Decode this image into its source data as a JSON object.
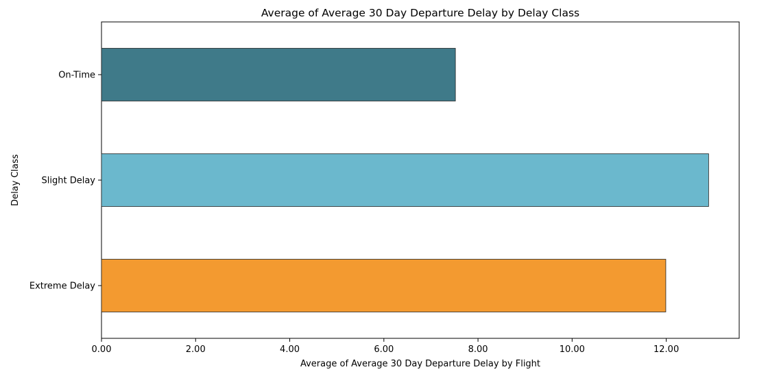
{
  "chart_data": {
    "type": "bar",
    "orientation": "horizontal",
    "title": "Average of Average 30 Day Departure Delay by Delay Class",
    "xlabel": "Average of Average 30 Day Departure Delay by Flight",
    "ylabel": "Delay Class",
    "categories": [
      "On-Time",
      "Slight Delay",
      "Extreme Delay"
    ],
    "values": [
      7.52,
      12.9,
      11.99
    ],
    "colors": [
      "#3f7a89",
      "#6bb8cd",
      "#f39a30"
    ],
    "edge_color": "#222222",
    "xlim": [
      0,
      13.55
    ],
    "xticks": [
      0,
      2,
      4,
      6,
      8,
      10,
      12
    ],
    "xtick_labels": [
      "0.00",
      "2.00",
      "4.00",
      "6.00",
      "8.00",
      "10.00",
      "12.00"
    ],
    "grid": false,
    "legend": "none"
  }
}
